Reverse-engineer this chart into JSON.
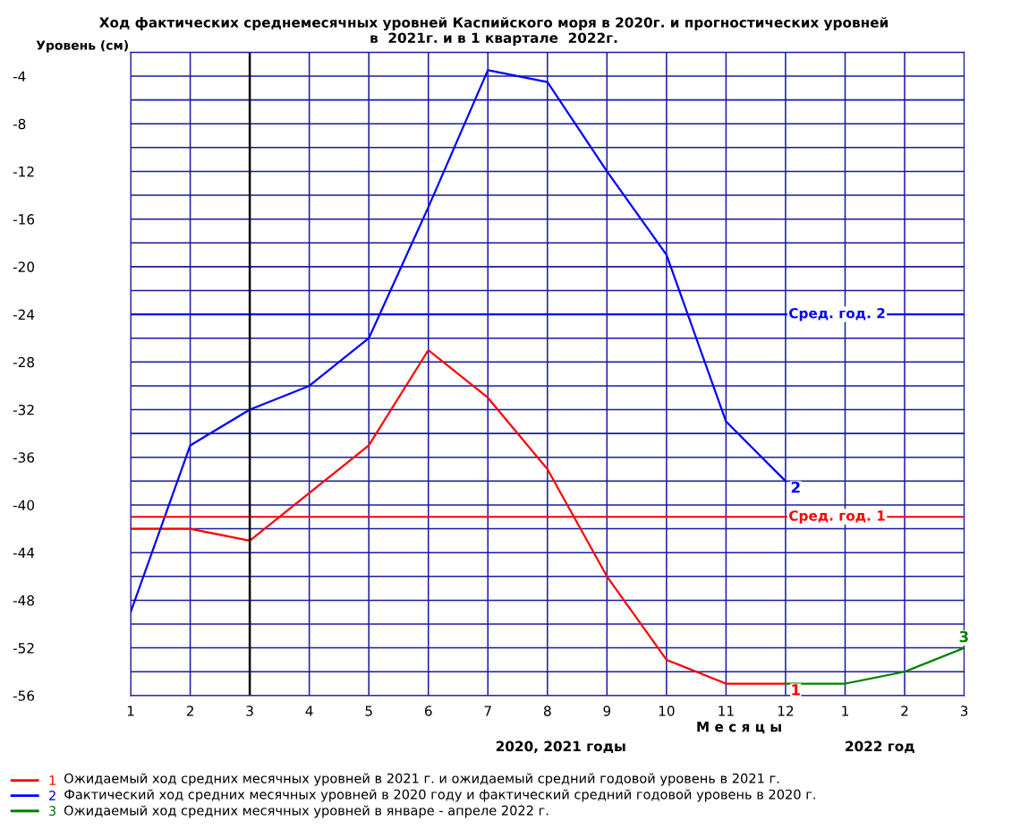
{
  "chart_data": {
    "type": "line",
    "title": "Ход фактических среднемесячных уровней Каспийского моря в 2020г. и прогностических уровней\nв  2021г. и в 1 квартале  2022г.",
    "ylabel": "Уровень (см)",
    "xlabel": "М е с я ц ы",
    "categories": [
      "1",
      "2",
      "3",
      "4",
      "5",
      "6",
      "7",
      "8",
      "9",
      "10",
      "11",
      "12",
      "1",
      "2",
      "3"
    ],
    "series": [
      {
        "name": "1",
        "color": "#ff0000",
        "values": [
          -42,
          -42,
          -43,
          -39,
          -35,
          -27,
          -31,
          -37,
          -46,
          -53,
          -55,
          -55,
          null,
          null,
          null
        ]
      },
      {
        "name": "2",
        "color": "#0000ff",
        "values": [
          -49,
          -35,
          -32,
          -30,
          -26,
          -15,
          -3.5,
          -4.5,
          -12,
          -19,
          -33,
          -38,
          null,
          null,
          null
        ]
      },
      {
        "name": "3",
        "color": "#008000",
        "values": [
          null,
          null,
          null,
          null,
          null,
          null,
          null,
          null,
          null,
          null,
          null,
          -55,
          -55,
          -54,
          -52
        ]
      }
    ],
    "ylim": [
      -56,
      -2
    ],
    "yticks": [
      -56,
      {
        "value": -54,
        "label": null
      },
      -52,
      {
        "value": -50,
        "label": null
      },
      -48,
      {
        "value": -46,
        "label": null
      },
      -44,
      {
        "value": -42,
        "label": null
      },
      -40,
      {
        "value": -38,
        "label": null
      },
      -36,
      {
        "value": -34,
        "label": null
      },
      -32,
      {
        "value": -30,
        "label": null
      },
      -28,
      {
        "value": -26,
        "label": null
      },
      -24,
      {
        "value": -22,
        "label": null
      },
      -20,
      {
        "value": -18,
        "label": null
      },
      -16,
      {
        "value": -14,
        "label": null
      },
      -12,
      {
        "value": -10,
        "label": null
      },
      -8,
      {
        "value": -6,
        "label": null
      },
      -4,
      {
        "value": -2,
        "label": null
      }
    ],
    "ref_lines": [
      {
        "axis": "y",
        "value": -24,
        "label": "Сред. год. 2",
        "color": "#0000ff"
      },
      {
        "axis": "y",
        "value": -41,
        "label": "Сред. год. 1",
        "color": "#ff0000"
      },
      {
        "axis": "x",
        "value": "3",
        "color": "#000000"
      }
    ],
    "annotations": [
      "Ожидаемый ход средних месячных уровней в 2021 г. и ожидаемый средний годовой уровень в 2021 г.",
      "Фактический ход средних месячных уровней в 2020 году и фактический средний годовой уровень в 2020 г.",
      "Ожидаемый ход средних месячных уровней в январе - апреле 2022 г.",
      "2020, 2021 годы",
      "2022 год"
    ],
    "grid": true,
    "legend": "bottom",
    "marker": "none",
    "line_style": "solid"
  }
}
